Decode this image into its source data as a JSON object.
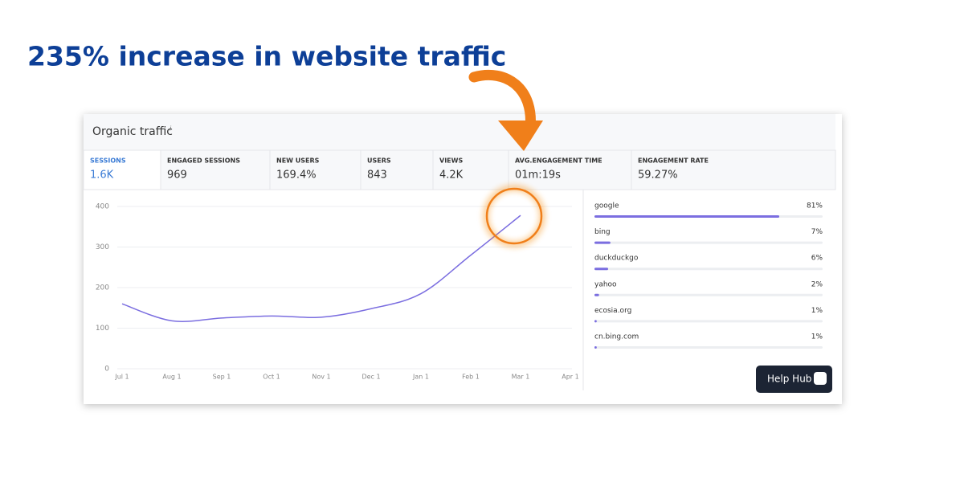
{
  "headline": "235% increase in website traffic",
  "panel_title": "Organic traffic",
  "info_mark": "i",
  "metrics": [
    {
      "label": "SESSIONS",
      "value": "1.6K"
    },
    {
      "label": "ENGAGED SESSIONS",
      "value": "969"
    },
    {
      "label": "NEW USERS",
      "value": "169.4%"
    },
    {
      "label": "USERS",
      "value": "843"
    },
    {
      "label": "VIEWS",
      "value": "4.2K"
    },
    {
      "label": "AVG.ENGAGEMENT TIME",
      "value": "01m:19s"
    },
    {
      "label": "ENGAGEMENT RATE",
      "value": "59.27%"
    }
  ],
  "chart_data": [
    {
      "type": "line",
      "categories": [
        "Jul 1",
        "Aug 1",
        "Sep 1",
        "Oct 1",
        "Nov 1",
        "Dec 1",
        "Jan 1",
        "Feb 1",
        "Mar 1",
        "Apr 1"
      ],
      "series": [
        {
          "color": "#7b6ee0",
          "values": [
            160,
            118,
            125,
            130,
            127,
            148,
            185,
            280,
            378,
            null
          ]
        }
      ],
      "ylim": [
        0,
        400
      ],
      "yticks": [
        0,
        100,
        200,
        300,
        400
      ],
      "grid": true
    },
    {
      "type": "bar",
      "orientation": "horizontal",
      "categories": [
        "google",
        "bing",
        "duckduckgo",
        "yahoo",
        "ecosia.org",
        "cn.bing.com"
      ],
      "values": [
        81,
        7,
        6,
        2,
        1,
        1
      ],
      "value_labels": [
        "81%",
        "7%",
        "6%",
        "2%",
        "1%",
        "1%"
      ],
      "xlim": [
        0,
        100
      ],
      "color": "#7b6ee0"
    }
  ],
  "help_button": "Help Hub"
}
